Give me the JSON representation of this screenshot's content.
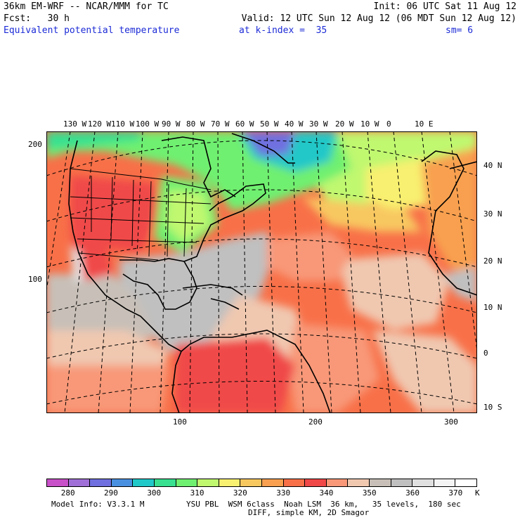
{
  "header": {
    "model_title": "36km EM-WRF -- NCAR/MMM for TC",
    "init": "Init: 06 UTC Sat 11 Aug 12",
    "fcst": "Fcst:   30 h",
    "valid": "Valid: 12 UTC Sun 12 Aug 12 (06 MDT Sun 12 Aug 12)",
    "field": "Equivalent potential temperature",
    "level": "at k-index =  35",
    "smooth": "sm= 6"
  },
  "map": {
    "lon_labels": [
      "130 W",
      "120 W",
      "110 W",
      "100 W",
      "90 W",
      "80 W",
      "70 W",
      "60 W",
      "50 W",
      "40 W",
      "30 W",
      "20 W",
      "10 W",
      "0",
      "10 E"
    ],
    "lat_labels": [
      "40 N",
      "30 N",
      "20 N",
      "10 N",
      "0",
      "10 S"
    ],
    "y_grid_labels": [
      "200",
      "100"
    ],
    "x_grid_labels": [
      "100",
      "200",
      "300"
    ]
  },
  "colorbar": {
    "colors": [
      "#c850c8",
      "#a070d8",
      "#7070e0",
      "#4a90e0",
      "#20c8c8",
      "#38e090",
      "#70f070",
      "#c0f870",
      "#f8f070",
      "#f8c860",
      "#f8a050",
      "#f87048",
      "#f04848",
      "#f89878",
      "#f0c8b0",
      "#c8c0b8",
      "#c0c0c0",
      "#e0e0e0",
      "#f4f4f4",
      "#ffffff"
    ],
    "labels": [
      "280",
      "290",
      "300",
      "310",
      "320",
      "330",
      "340",
      "350",
      "360",
      "370"
    ],
    "unit": "K"
  },
  "footer": {
    "model_info": "Model Info: V3.3.1 M",
    "physics": "YSU PBL  WSM 6class  Noah LSM  36 km,   35 levels,  180 sec",
    "diff": "DIFF, simple KM, 2D Smagor"
  }
}
